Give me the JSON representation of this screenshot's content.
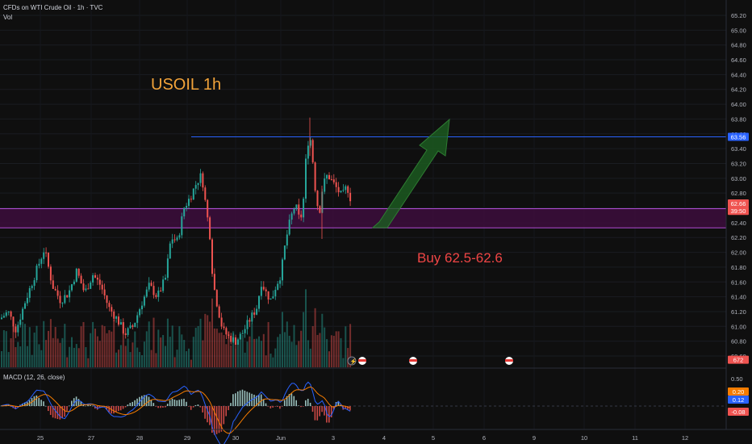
{
  "header": {
    "symbol_line": "CFDs on WTI Crude Oil · 1h · TVC",
    "volume_label": "Vol",
    "macd_label": "MACD (12, 26, close)"
  },
  "annotations": {
    "title": "USOIL 1h",
    "buy_text": "Buy 62.5-62.6"
  },
  "colors": {
    "background": "#0f0f0f",
    "up": "#26a69a",
    "down": "#ef5350",
    "title": "#f2a33a",
    "buy_text": "#ef4545",
    "resistance_line": "#2962ff",
    "zone_fill": "#3c0d3c",
    "zone_border": "#b04cd4",
    "arrow": "#1b5e20"
  },
  "chart_data": {
    "type": "candlestick",
    "timeframe": "1h",
    "price_axis": {
      "ylim": [
        60.5,
        65.4
      ],
      "ticks": [
        "60.60",
        "60.80",
        "61.00",
        "61.20",
        "61.40",
        "61.60",
        "61.80",
        "62.00",
        "62.20",
        "62.40",
        "62.60",
        "62.80",
        "63.00",
        "63.20",
        "63.40",
        "63.60",
        "63.80",
        "64.00",
        "64.20",
        "64.40",
        "64.60",
        "64.80",
        "65.00",
        "65.20"
      ]
    },
    "time_axis": {
      "labels": [
        "25",
        "27",
        "28",
        "29",
        "30",
        "Jun",
        "3",
        "4",
        "5",
        "6",
        "9",
        "10",
        "11",
        "12"
      ]
    },
    "price_labels": [
      {
        "value": "63.56",
        "level": 63.56,
        "color": "#2962ff"
      },
      {
        "value": "62.66",
        "level": 62.66,
        "color": "#ef5350"
      },
      {
        "value": "39:50",
        "level": 62.56,
        "color": "#ef5350"
      },
      {
        "value": "672",
        "level": 60.55,
        "color": "#ef5350"
      }
    ],
    "resistance_level": 63.56,
    "buy_zone": [
      62.33,
      62.59
    ],
    "macd": {
      "axis_ticks": [
        "0.50",
        "-0.08"
      ],
      "labels": [
        {
          "value": "0.20",
          "color": "#f57c00"
        },
        {
          "value": "0.12",
          "color": "#2962ff"
        },
        {
          "value": "-0.08",
          "color": "#ef5350"
        }
      ]
    }
  }
}
